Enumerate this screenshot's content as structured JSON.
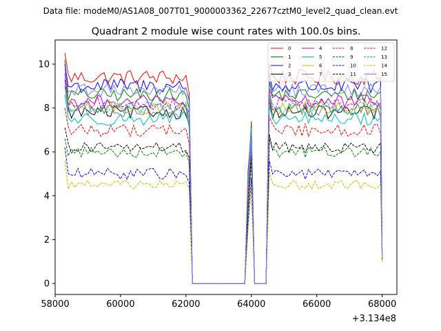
{
  "header": "Data file: modeM0/AS1A08_007T01_9000003362_22677cztM0_level2_quad_clean.evt",
  "chart_data": {
    "type": "line",
    "title": "Quadrant 2 module wise count rates with 100.0s bins.",
    "xlabel": "",
    "ylabel": "",
    "x_offset_label": "+3.134e8",
    "xlim": [
      58000,
      68450
    ],
    "ylim": [
      -0.5,
      11.1
    ],
    "xticks": [
      58000,
      60000,
      62000,
      64000,
      66000,
      68000
    ],
    "xtick_labels": [
      "58000",
      "60000",
      "62000",
      "64000",
      "66000",
      "68000"
    ],
    "yticks": [
      0,
      2,
      4,
      6,
      8,
      10
    ],
    "ytick_labels": [
      "0",
      "2",
      "4",
      "6",
      "8",
      "10"
    ],
    "grid": false,
    "legend_position": "upper right",
    "segments": [
      {
        "type": "data",
        "x_start": 58300,
        "x_end": 62050
      },
      {
        "type": "drop",
        "x": 62200
      },
      {
        "type": "zero",
        "x_start": 62200,
        "x_end": 63800
      },
      {
        "type": "spike",
        "x_start": 63800,
        "x_end": 64250
      },
      {
        "type": "zero",
        "x_start": 64100,
        "x_end": 64500
      },
      {
        "type": "data",
        "x_start": 64550,
        "x_end": 67950
      },
      {
        "type": "drop",
        "x": 68000
      }
    ],
    "series": [
      {
        "name": "0",
        "color": "#ff0000",
        "dash": "solid",
        "level": 9.4,
        "start": 10.5,
        "spike": 7.0,
        "end": 1.5,
        "noise": 0.35
      },
      {
        "name": "1",
        "color": "#008000",
        "dash": "solid",
        "level": 8.6,
        "start": 10.2,
        "spike": 7.4,
        "end": 1.4,
        "noise": 0.3
      },
      {
        "name": "2",
        "color": "#0000ff",
        "dash": "solid",
        "level": 9.0,
        "start": 10.0,
        "spike": 6.9,
        "end": 1.3,
        "noise": 0.35
      },
      {
        "name": "3",
        "color": "#000000",
        "dash": "solid",
        "level": 7.8,
        "start": 9.0,
        "spike": 6.6,
        "end": 1.2,
        "noise": 0.3
      },
      {
        "name": "4",
        "color": "#bf00bf",
        "dash": "solid",
        "level": 8.3,
        "start": 9.6,
        "spike": 6.8,
        "end": 1.3,
        "noise": 0.3
      },
      {
        "name": "5",
        "color": "#00bfbf",
        "dash": "solid",
        "level": 7.5,
        "start": 8.6,
        "spike": 6.4,
        "end": 1.2,
        "noise": 0.3
      },
      {
        "name": "6",
        "color": "#bfbf00",
        "dash": "solid",
        "level": 8.0,
        "start": 9.2,
        "spike": 6.7,
        "end": 1.3,
        "noise": 0.3
      },
      {
        "name": "7",
        "color": "#808080",
        "dash": "solid",
        "level": 7.9,
        "start": 9.0,
        "spike": 6.5,
        "end": 1.2,
        "noise": 0.3
      },
      {
        "name": "8",
        "color": "#ff0000",
        "dash": "dashed",
        "level": 7.0,
        "start": 8.0,
        "spike": 6.0,
        "end": 1.2,
        "noise": 0.3
      },
      {
        "name": "9",
        "color": "#008000",
        "dash": "dashed",
        "level": 6.0,
        "start": 6.6,
        "spike": 5.6,
        "end": 1.1,
        "noise": 0.25
      },
      {
        "name": "10",
        "color": "#0000ff",
        "dash": "dashed",
        "level": 5.0,
        "start": 6.2,
        "spike": 4.8,
        "end": 1.0,
        "noise": 0.25
      },
      {
        "name": "11",
        "color": "#000000",
        "dash": "dashed",
        "level": 6.2,
        "start": 7.1,
        "spike": 5.8,
        "end": 1.1,
        "noise": 0.25
      },
      {
        "name": "12",
        "color": "#bf00bf",
        "dash": "dashed",
        "level": 8.2,
        "start": 9.3,
        "spike": 6.7,
        "end": 1.3,
        "noise": 0.3
      },
      {
        "name": "13",
        "color": "#00bfbf",
        "dash": "dashed",
        "level": 8.0,
        "start": 9.0,
        "spike": 6.6,
        "end": 1.2,
        "noise": 0.3
      },
      {
        "name": "14",
        "color": "#bfbf00",
        "dash": "dashed",
        "level": 4.5,
        "start": 5.6,
        "spike": 4.4,
        "end": 1.0,
        "noise": 0.2
      },
      {
        "name": "15",
        "color": "#8080ff",
        "dash": "solid",
        "level": 8.8,
        "start": 9.8,
        "spike": 7.1,
        "end": 1.4,
        "noise": 0.3
      }
    ]
  }
}
